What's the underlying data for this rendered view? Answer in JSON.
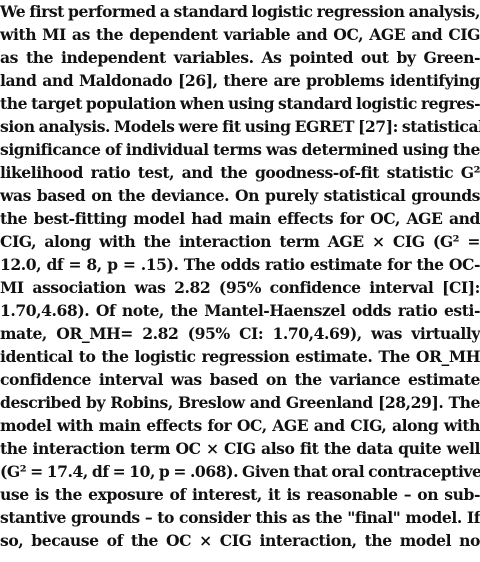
{
  "document": {
    "lines": [
      "We first performed a standard logistic regression analysis,",
      "with MI as the dependent variable and OC, AGE and CIG",
      "as the independent variables. As pointed out by Green-",
      "land and Maldonado [26], there are problems identifying",
      "the target population when using standard logistic regres-",
      "sion analysis. Models were fit using EGRET [27]: statistical",
      "significance of individual terms was determined using the",
      "likelihood ratio test, and the goodness-of-fit statistic G²",
      "was based on the deviance. On purely statistical grounds",
      "the best-fitting model had main effects for OC, AGE and",
      "CIG, along with the interaction term AGE × CIG (G² =",
      "12.0, df = 8, p = .15). The odds ratio estimate for the OC-",
      "MI association was 2.82 (95% confidence interval [CI]:",
      "1.70,4.68). Of note, the Mantel-Haenszel odds ratio esti-",
      "mate, OR_MH= 2.82 (95% CI: 1.70,4.69), was virtually",
      "identical to the logistic regression estimate. The OR_MH",
      "confidence interval was based on the variance estimate",
      "described by Robins, Breslow and Greenland [28,29]. The",
      "model with main effects for OC, AGE and CIG, along with",
      "the interaction term OC × CIG also fit the data quite well",
      "(G² = 17.4, df = 10, p = .068). Given that oral contraceptive",
      "use is the exposure of interest, it is reasonable – on sub-",
      "stantive grounds – to consider this as the \"final\" model. If",
      "so, because of the OC × CIG interaction, the model no"
    ]
  }
}
